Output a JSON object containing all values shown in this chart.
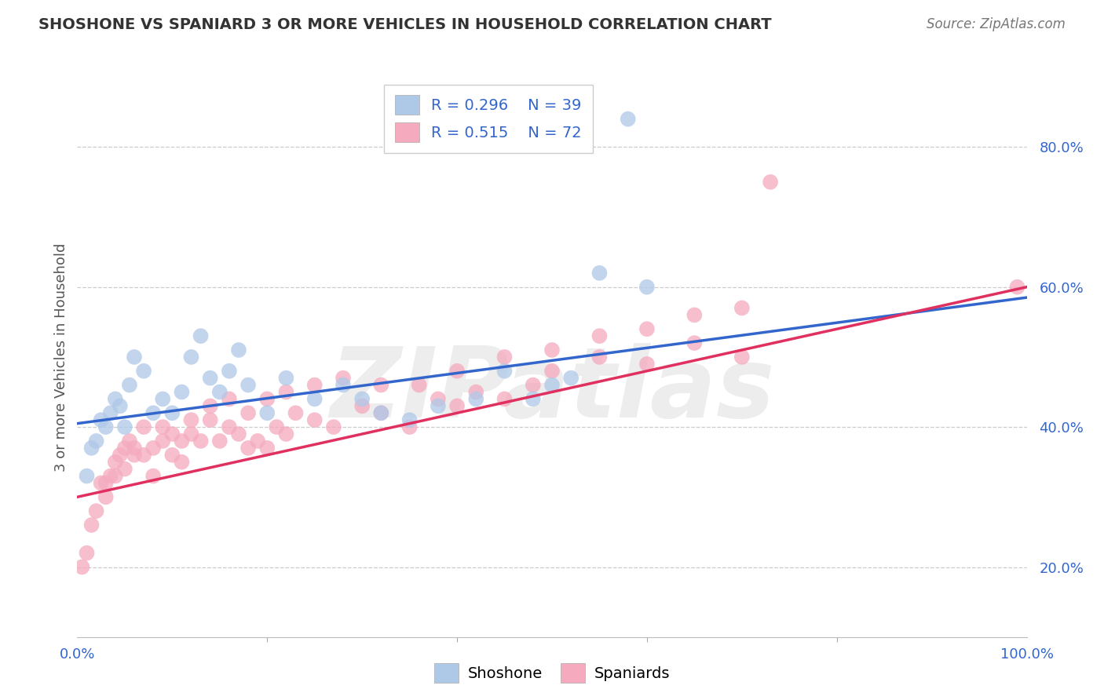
{
  "title": "SHOSHONE VS SPANIARD 3 OR MORE VEHICLES IN HOUSEHOLD CORRELATION CHART",
  "source": "Source: ZipAtlas.com",
  "ylabel": "3 or more Vehicles in Household",
  "legend_label1": "Shoshone",
  "legend_label2": "Spaniards",
  "r1": 0.296,
  "n1": 39,
  "r2": 0.515,
  "n2": 72,
  "color1": "#aec8e8",
  "color2": "#f5aabe",
  "line_color1": "#3366cc",
  "line_color2": "#e03060",
  "legend_text_color": "#3366cc",
  "shoshone_x": [
    1.0,
    1.5,
    2.0,
    2.5,
    3.0,
    3.5,
    4.0,
    4.5,
    5.0,
    5.5,
    6.0,
    7.0,
    8.0,
    9.0,
    10.0,
    11.0,
    12.0,
    13.0,
    14.0,
    15.0,
    16.0,
    17.0,
    18.0,
    20.0,
    22.0,
    25.0,
    28.0,
    30.0,
    32.0,
    50.0,
    55.0,
    60.0,
    35.0,
    38.0,
    42.0,
    45.0,
    48.0,
    52.0,
    58.0
  ],
  "shoshone_y": [
    33,
    37,
    38,
    41,
    40,
    42,
    44,
    43,
    40,
    46,
    50,
    48,
    42,
    44,
    42,
    45,
    50,
    53,
    47,
    45,
    48,
    51,
    46,
    42,
    47,
    44,
    46,
    44,
    42,
    46,
    62,
    60,
    41,
    43,
    44,
    48,
    44,
    47,
    84
  ],
  "spaniard_x": [
    0.5,
    1.0,
    1.5,
    2.0,
    2.5,
    3.0,
    3.5,
    4.0,
    4.5,
    5.0,
    5.5,
    6.0,
    7.0,
    8.0,
    9.0,
    10.0,
    11.0,
    12.0,
    13.0,
    14.0,
    15.0,
    16.0,
    17.0,
    18.0,
    19.0,
    20.0,
    21.0,
    22.0,
    23.0,
    25.0,
    27.0,
    30.0,
    32.0,
    35.0,
    38.0,
    40.0,
    42.0,
    45.0,
    48.0,
    50.0,
    55.0,
    60.0,
    65.0,
    70.0,
    3.0,
    4.0,
    5.0,
    6.0,
    7.0,
    8.0,
    9.0,
    10.0,
    11.0,
    12.0,
    14.0,
    16.0,
    18.0,
    20.0,
    22.0,
    25.0,
    28.0,
    32.0,
    36.0,
    40.0,
    45.0,
    50.0,
    55.0,
    60.0,
    65.0,
    70.0,
    73.0,
    99.0
  ],
  "spaniard_y": [
    20,
    22,
    26,
    28,
    32,
    30,
    33,
    35,
    36,
    34,
    38,
    37,
    36,
    33,
    38,
    36,
    35,
    39,
    38,
    41,
    38,
    40,
    39,
    37,
    38,
    37,
    40,
    39,
    42,
    41,
    40,
    43,
    42,
    40,
    44,
    43,
    45,
    44,
    46,
    48,
    50,
    49,
    52,
    50,
    32,
    33,
    37,
    36,
    40,
    37,
    40,
    39,
    38,
    41,
    43,
    44,
    42,
    44,
    45,
    46,
    47,
    46,
    46,
    48,
    50,
    51,
    53,
    54,
    56,
    57,
    75,
    60
  ],
  "trendline_blue_x0": 0,
  "trendline_blue_y0": 40.5,
  "trendline_blue_x1": 100,
  "trendline_blue_y1": 58.5,
  "trendline_pink_x0": 0,
  "trendline_pink_y0": 30.0,
  "trendline_pink_x1": 100,
  "trendline_pink_y1": 60.0,
  "xlim": [
    0,
    100
  ],
  "ylim_min": 10,
  "ylim_max": 90,
  "yticks": [
    20,
    40,
    60,
    80
  ],
  "ytick_labels": [
    "20.0%",
    "40.0%",
    "60.0%",
    "80.0%"
  ],
  "bg_color": "#ffffff",
  "grid_color": "#cccccc",
  "watermark": "ZIPatlas",
  "watermark_color": "#d0d0d0",
  "title_fontsize": 14,
  "source_fontsize": 12,
  "tick_fontsize": 13,
  "legend_fontsize": 14,
  "ylabel_fontsize": 13
}
